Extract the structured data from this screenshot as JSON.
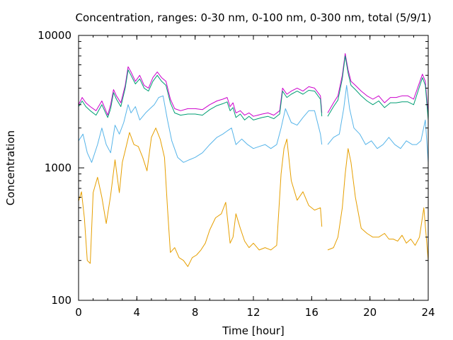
{
  "chart_data": {
    "type": "line",
    "title": "Concentration, ranges: 0-30 nm, 0-100 nm, 0-300 nm, total (5/9/1)",
    "xlabel": "Time [hour]",
    "ylabel": "Concentration",
    "xlim": [
      0,
      24
    ],
    "ylim": [
      100,
      10000
    ],
    "yscale": "log",
    "grid": false,
    "legend": "none",
    "xticks": [
      "0",
      "4",
      "8",
      "12",
      "16",
      "20",
      "24"
    ],
    "yticks": [
      "100",
      "1000",
      "10000"
    ],
    "gaps": [
      [
        16.7,
        17.1
      ]
    ],
    "series": [
      {
        "color": "#cc00cc",
        "x": [
          0,
          0.25,
          0.5,
          0.8,
          1.2,
          1.6,
          2.0,
          2.2,
          2.4,
          2.6,
          2.9,
          3.2,
          3.4,
          3.6,
          3.9,
          4.2,
          4.5,
          4.8,
          5.1,
          5.4,
          5.7,
          6.0,
          6.3,
          6.6,
          7.0,
          7.5,
          8.0,
          8.5,
          9.0,
          9.5,
          9.9,
          10.2,
          10.4,
          10.6,
          10.8,
          11.1,
          11.4,
          11.7,
          12.0,
          12.3,
          12.6,
          13.0,
          13.4,
          13.8,
          14.0,
          14.3,
          14.6,
          15.0,
          15.4,
          15.8,
          16.2,
          16.6,
          16.7,
          17.1,
          17.5,
          17.8,
          18.1,
          18.3,
          18.5,
          18.7,
          19.0,
          19.4,
          19.8,
          20.2,
          20.6,
          21.0,
          21.4,
          21.8,
          22.2,
          22.6,
          23.0,
          23.3,
          23.6,
          23.8,
          24.0
        ],
        "y": [
          3000,
          3400,
          3100,
          2900,
          2700,
          3200,
          2500,
          3000,
          3900,
          3500,
          3100,
          4200,
          5800,
          5300,
          4500,
          5000,
          4200,
          4000,
          4800,
          5300,
          4800,
          4500,
          3300,
          2800,
          2700,
          2800,
          2800,
          2750,
          3000,
          3200,
          3300,
          3400,
          2900,
          3100,
          2600,
          2700,
          2500,
          2600,
          2450,
          2500,
          2550,
          2600,
          2500,
          2700,
          4000,
          3600,
          3800,
          4000,
          3800,
          4100,
          4000,
          3500,
          2600,
          2600,
          3100,
          3500,
          5000,
          7300,
          5500,
          4500,
          4200,
          3800,
          3500,
          3300,
          3500,
          3100,
          3400,
          3400,
          3500,
          3500,
          3300,
          4100,
          5100,
          4500,
          2500
        ]
      },
      {
        "color": "#009e73",
        "x": [
          0,
          0.25,
          0.5,
          0.8,
          1.2,
          1.6,
          2.0,
          2.2,
          2.4,
          2.6,
          2.9,
          3.2,
          3.4,
          3.6,
          3.9,
          4.2,
          4.5,
          4.8,
          5.1,
          5.4,
          5.7,
          6.0,
          6.3,
          6.6,
          7.0,
          7.5,
          8.0,
          8.5,
          9.0,
          9.5,
          9.9,
          10.2,
          10.4,
          10.6,
          10.8,
          11.1,
          11.4,
          11.7,
          12.0,
          12.3,
          12.6,
          13.0,
          13.4,
          13.8,
          14.0,
          14.3,
          14.6,
          15.0,
          15.4,
          15.8,
          16.2,
          16.6,
          16.7,
          17.1,
          17.5,
          17.8,
          18.1,
          18.3,
          18.5,
          18.7,
          19.0,
          19.4,
          19.8,
          20.2,
          20.6,
          21.0,
          21.4,
          21.8,
          22.2,
          22.6,
          23.0,
          23.3,
          23.6,
          23.8,
          24.0
        ],
        "y": [
          2900,
          3200,
          2900,
          2700,
          2500,
          3000,
          2400,
          2800,
          3700,
          3300,
          2900,
          4000,
          5500,
          5000,
          4300,
          4700,
          4000,
          3800,
          4500,
          5000,
          4500,
          4200,
          3100,
          2600,
          2500,
          2550,
          2550,
          2500,
          2750,
          2950,
          3050,
          3150,
          2700,
          2850,
          2400,
          2550,
          2300,
          2450,
          2300,
          2350,
          2400,
          2450,
          2350,
          2550,
          3800,
          3400,
          3600,
          3800,
          3600,
          3850,
          3800,
          3300,
          2450,
          2450,
          2900,
          3250,
          4700,
          7000,
          5200,
          4200,
          3900,
          3500,
          3200,
          3000,
          3200,
          2850,
          3100,
          3100,
          3150,
          3150,
          3000,
          3800,
          4800,
          4200,
          2300
        ]
      },
      {
        "color": "#56b4e9",
        "x": [
          0,
          0.3,
          0.6,
          0.9,
          1.3,
          1.6,
          1.9,
          2.2,
          2.5,
          2.8,
          3.1,
          3.4,
          3.6,
          3.9,
          4.2,
          4.6,
          4.9,
          5.2,
          5.5,
          5.8,
          6.1,
          6.4,
          6.8,
          7.2,
          7.6,
          8.0,
          8.5,
          9.0,
          9.5,
          9.9,
          10.2,
          10.5,
          10.8,
          11.2,
          11.6,
          12.0,
          12.4,
          12.8,
          13.2,
          13.6,
          13.9,
          14.2,
          14.6,
          15.0,
          15.4,
          15.8,
          16.2,
          16.6,
          16.7,
          17.1,
          17.5,
          17.9,
          18.2,
          18.4,
          18.6,
          18.9,
          19.3,
          19.7,
          20.1,
          20.5,
          20.9,
          21.3,
          21.7,
          22.1,
          22.5,
          22.9,
          23.2,
          23.5,
          23.8,
          24.0
        ],
        "y": [
          1600,
          1800,
          1300,
          1100,
          1500,
          2000,
          1500,
          1300,
          2100,
          1800,
          2200,
          3000,
          2600,
          2900,
          2300,
          2600,
          2800,
          3000,
          3400,
          3500,
          2300,
          1600,
          1200,
          1100,
          1150,
          1200,
          1300,
          1500,
          1700,
          1800,
          1900,
          2000,
          1500,
          1650,
          1500,
          1400,
          1450,
          1500,
          1400,
          1500,
          2000,
          2800,
          2200,
          2100,
          2400,
          2700,
          2700,
          1800,
          1500,
          1500,
          1700,
          1800,
          2800,
          4200,
          2800,
          2000,
          1800,
          1500,
          1600,
          1400,
          1500,
          1700,
          1500,
          1400,
          1600,
          1500,
          1500,
          1600,
          2300,
          1100
        ]
      },
      {
        "color": "#e69f00",
        "x": [
          0,
          0.2,
          0.4,
          0.6,
          0.8,
          1.0,
          1.3,
          1.6,
          1.9,
          2.2,
          2.5,
          2.8,
          3.0,
          3.2,
          3.5,
          3.8,
          4.1,
          4.4,
          4.7,
          5.0,
          5.3,
          5.6,
          5.9,
          6.1,
          6.3,
          6.6,
          6.9,
          7.2,
          7.5,
          7.8,
          8.1,
          8.4,
          8.7,
          9.0,
          9.4,
          9.8,
          10.1,
          10.4,
          10.6,
          10.8,
          11.1,
          11.4,
          11.7,
          12.0,
          12.4,
          12.8,
          13.2,
          13.6,
          13.9,
          14.1,
          14.3,
          14.6,
          15.0,
          15.4,
          15.8,
          16.2,
          16.6,
          16.7,
          17.1,
          17.5,
          17.8,
          18.1,
          18.3,
          18.5,
          18.7,
          19.0,
          19.4,
          19.8,
          20.2,
          20.6,
          21.0,
          21.3,
          21.6,
          21.9,
          22.2,
          22.5,
          22.8,
          23.1,
          23.4,
          23.7,
          24.0
        ],
        "y": [
          560,
          660,
          420,
          200,
          190,
          650,
          850,
          600,
          380,
          620,
          1150,
          650,
          1100,
          1350,
          1850,
          1500,
          1450,
          1200,
          950,
          1700,
          2000,
          1650,
          1200,
          500,
          230,
          250,
          210,
          200,
          180,
          210,
          220,
          240,
          270,
          340,
          420,
          450,
          550,
          270,
          300,
          450,
          350,
          280,
          250,
          270,
          240,
          250,
          240,
          260,
          900,
          1400,
          1650,
          800,
          570,
          660,
          520,
          480,
          500,
          360,
          240,
          250,
          300,
          500,
          900,
          1400,
          1100,
          600,
          350,
          320,
          300,
          300,
          320,
          290,
          290,
          280,
          310,
          270,
          290,
          260,
          300,
          500,
          200
        ]
      }
    ]
  }
}
